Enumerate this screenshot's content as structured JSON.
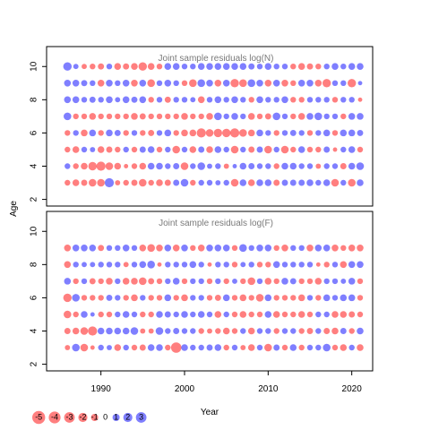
{
  "chart_data": {
    "type": "scatter",
    "encoding": "bubble",
    "xlabel": "Year",
    "ylabel": "Age",
    "xlim": [
      1983.5,
      2022.5
    ],
    "xticks": [
      1990,
      2000,
      2010,
      2020
    ],
    "colors": {
      "positive": "#0000ff",
      "negative": "#ff0000",
      "opacity": 0.5
    },
    "legend": {
      "placement": "bottom-left",
      "values": [
        -5,
        -4,
        -3,
        -2,
        -1,
        0,
        1,
        2,
        3
      ],
      "labels": [
        "-5",
        "-4",
        "-3",
        "-2",
        "-1",
        "0",
        "1",
        "2",
        "3"
      ]
    },
    "panels": [
      {
        "title": "Joint sample residuals log(N)",
        "ylim": [
          1.6,
          11.2
        ],
        "yticks": [
          2,
          4,
          6,
          8,
          10
        ],
        "yticklabels": [
          "2",
          "4",
          "6",
          "8",
          "10"
        ],
        "years": [
          1986,
          1987,
          1988,
          1989,
          1990,
          1991,
          1992,
          1993,
          1994,
          1995,
          1996,
          1997,
          1998,
          1999,
          2000,
          2001,
          2002,
          2003,
          2004,
          2005,
          2006,
          2007,
          2008,
          2009,
          2010,
          2011,
          2012,
          2013,
          2014,
          2015,
          2016,
          2017,
          2018,
          2019,
          2020,
          2021
        ],
        "ages": [
          3,
          4,
          5,
          6,
          7,
          8,
          9,
          10
        ],
        "residuals": [
          [
            -1.0,
            -1.5,
            -1.2,
            -2.0,
            -2.0,
            3.0,
            -0.8,
            -1.0,
            -1.2,
            -2.0,
            -1.0,
            -1.5,
            -1.2,
            1.2,
            2.0,
            -1.0,
            1.0,
            1.0,
            0.8,
            1.0,
            -2.0,
            1.5,
            -1.5,
            1.5,
            1.5,
            -1.2,
            1.2,
            1.2,
            1.2,
            1.5,
            1.0,
            1.5,
            -2.0,
            1.0,
            -2.0,
            1.5
          ],
          [
            1.0,
            -1.0,
            -1.5,
            -2.5,
            -3.0,
            -2.0,
            -1.5,
            -0.5,
            -1.0,
            -1.5,
            1.5,
            1.5,
            1.0,
            1.2,
            -2.0,
            1.0,
            2.0,
            0.8,
            1.0,
            -0.8,
            0.5,
            1.5,
            1.2,
            1.0,
            1.0,
            -1.0,
            1.5,
            1.5,
            1.0,
            1.0,
            -0.8,
            1.0,
            1.0,
            -1.2,
            1.5,
            2.0
          ],
          [
            -1.0,
            -1.5,
            1.0,
            0.8,
            -1.5,
            -1.2,
            -1.0,
            1.0,
            -1.0,
            1.2,
            1.5,
            -1.0,
            1.0,
            -2.0,
            1.0,
            -1.5,
            1.2,
            -1.5,
            1.5,
            1.0,
            -2.0,
            1.0,
            -1.2,
            1.2,
            -2.0,
            1.0,
            -2.0,
            -1.0,
            1.5,
            -1.0,
            -1.0,
            1.2,
            -0.5,
            1.0,
            1.5,
            -1.0
          ],
          [
            -1.0,
            1.0,
            -1.5,
            1.5,
            -1.0,
            1.5,
            1.2,
            -1.0,
            1.0,
            -1.0,
            -1.2,
            1.0,
            1.5,
            -1.0,
            -1.5,
            -1.5,
            -3.0,
            -2.0,
            -2.5,
            -2.5,
            -3.0,
            -2.0,
            -1.5,
            1.5,
            1.0,
            -1.0,
            1.0,
            1.2,
            1.0,
            -1.0,
            1.0,
            1.5,
            -1.0,
            1.5,
            1.5,
            1.2
          ],
          [
            2.0,
            -1.0,
            -1.0,
            -1.5,
            -1.0,
            -1.0,
            -1.0,
            -1.0,
            -1.5,
            -1.2,
            -1.0,
            -1.0,
            -1.0,
            -1.0,
            -1.5,
            -1.0,
            -1.0,
            -1.5,
            2.0,
            1.0,
            1.5,
            1.0,
            -1.5,
            -1.0,
            -1.2,
            2.0,
            1.0,
            -1.0,
            -1.5,
            1.5,
            2.0,
            1.0,
            1.0,
            -1.0,
            1.5,
            1.5
          ],
          [
            1.5,
            1.5,
            1.0,
            1.2,
            1.0,
            1.5,
            0.8,
            1.5,
            1.2,
            1.5,
            -1.0,
            1.0,
            -1.2,
            1.0,
            1.0,
            0.8,
            -1.5,
            1.0,
            1.5,
            1.0,
            1.5,
            1.0,
            -1.0,
            1.5,
            1.0,
            1.0,
            1.5,
            -1.0,
            -1.0,
            1.0,
            1.0,
            1.0,
            -1.0,
            1.0,
            1.0,
            -0.5
          ],
          [
            1.5,
            1.5,
            1.2,
            1.0,
            -1.5,
            1.5,
            1.0,
            1.5,
            -1.5,
            1.5,
            -2.0,
            1.0,
            1.5,
            1.0,
            -1.0,
            -2.0,
            2.0,
            1.5,
            -1.5,
            1.5,
            -2.5,
            -2.0,
            2.0,
            1.5,
            -1.5,
            1.5,
            -1.5,
            -1.0,
            1.5,
            1.5,
            -1.5,
            -2.5,
            1.0,
            1.0,
            -2.5,
            0.5
          ],
          [
            2.5,
            0.8,
            -0.8,
            -1.0,
            -1.2,
            1.0,
            -1.5,
            -1.2,
            -1.5,
            -2.5,
            -1.5,
            -1.0,
            1.5,
            1.5,
            1.0,
            1.0,
            1.5,
            1.5,
            1.5,
            1.5,
            1.5,
            1.5,
            1.2,
            1.0,
            1.5,
            1.0,
            1.0,
            -1.0,
            -1.5,
            -1.2,
            -1.0,
            1.0,
            1.5,
            1.0,
            1.5,
            1.5
          ]
        ]
      },
      {
        "title": "Joint sample residuals log(F)",
        "ylim": [
          1.6,
          11.2
        ],
        "yticks": [
          2,
          4,
          6,
          8,
          10
        ],
        "yticklabels": [
          "2",
          "4",
          "6",
          "8",
          "10"
        ],
        "years": [
          1986,
          1987,
          1988,
          1989,
          1990,
          1991,
          1992,
          1993,
          1994,
          1995,
          1996,
          1997,
          1998,
          1999,
          2000,
          2001,
          2002,
          2003,
          2004,
          2005,
          2006,
          2007,
          2008,
          2009,
          2010,
          2011,
          2012,
          2013,
          2014,
          2015,
          2016,
          2017,
          2018,
          2019,
          2020,
          2021
        ],
        "ages": [
          3,
          4,
          5,
          6,
          7,
          8,
          9
        ],
        "residuals": [
          [
            -0.8,
            2.0,
            -2.0,
            -0.5,
            1.0,
            0.8,
            -1.5,
            1.0,
            -1.0,
            -1.2,
            1.5,
            1.5,
            -1.0,
            -4.0,
            1.5,
            1.0,
            1.0,
            1.2,
            1.5,
            -1.0,
            1.0,
            -0.8,
            -1.5,
            1.0,
            -2.0,
            1.2,
            -1.0,
            1.5,
            -1.0,
            1.0,
            1.0,
            2.0,
            -1.0,
            -1.5,
            1.0,
            -1.5
          ],
          [
            -1.2,
            -1.5,
            -2.0,
            -3.0,
            1.5,
            1.5,
            1.5,
            1.5,
            2.0,
            -0.8,
            -0.8,
            2.0,
            1.0,
            1.2,
            1.0,
            1.0,
            -1.0,
            -0.8,
            -1.0,
            -1.5,
            -1.0,
            1.0,
            -1.5,
            1.0,
            1.0,
            -1.0,
            1.0,
            1.0,
            -1.0,
            -1.2,
            1.0,
            -1.2,
            -1.5,
            1.2,
            -1.0,
            1.5
          ],
          [
            -2.0,
            -1.0,
            1.5,
            0.5,
            -1.0,
            -1.0,
            1.0,
            1.5,
            1.0,
            -1.0,
            -1.0,
            1.5,
            1.2,
            1.0,
            1.5,
            1.0,
            1.5,
            1.0,
            -1.5,
            1.0,
            -1.0,
            -1.5,
            -1.0,
            -1.0,
            1.5,
            -1.5,
            -1.0,
            -1.0,
            -1.5,
            -1.0,
            1.0,
            1.0,
            -1.5,
            -1.5,
            -1.2,
            -1.0
          ],
          [
            -2.5,
            2.0,
            -1.0,
            -1.0,
            -1.0,
            1.2,
            1.0,
            -1.0,
            -1.5,
            1.0,
            -1.0,
            -1.0,
            1.5,
            -1.0,
            -1.5,
            1.0,
            1.0,
            -1.0,
            -1.2,
            1.5,
            -1.0,
            -1.5,
            -1.0,
            -2.0,
            1.5,
            -1.0,
            -1.0,
            -1.0,
            -1.5,
            1.0,
            -1.0,
            1.5,
            1.0,
            1.5,
            1.5,
            -1.0
          ],
          [
            1.5,
            -1.0,
            1.0,
            -1.2,
            -1.0,
            -1.5,
            1.0,
            -1.5,
            -1.5,
            -2.0,
            -1.2,
            -1.0,
            1.0,
            1.5,
            -1.0,
            1.0,
            1.0,
            -1.0,
            1.0,
            -1.0,
            0.8,
            -1.0,
            -2.0,
            1.0,
            -1.5,
            -1.0,
            1.5,
            1.2,
            -1.0,
            -1.0,
            -1.5,
            1.0,
            1.0,
            0.8,
            1.5,
            -1.0
          ],
          [
            -1.5,
            1.0,
            0.8,
            0.8,
            1.0,
            1.0,
            1.0,
            -0.8,
            1.0,
            1.5,
            2.0,
            -0.5,
            1.0,
            1.0,
            1.0,
            1.5,
            1.0,
            -0.5,
            1.0,
            1.0,
            -1.0,
            0.8,
            1.0,
            -1.0,
            -1.0,
            1.5,
            1.0,
            1.0,
            1.0,
            1.0,
            -0.5,
            -1.0,
            1.0,
            -1.5,
            1.5,
            1.5
          ],
          [
            -1.5,
            1.5,
            1.5,
            1.5,
            -1.2,
            1.0,
            1.0,
            1.5,
            1.0,
            -1.5,
            -2.0,
            -1.5,
            1.5,
            -1.5,
            1.5,
            -1.0,
            -1.5,
            1.5,
            1.5,
            1.5,
            -1.0,
            2.0,
            1.0,
            1.5,
            1.5,
            -1.0,
            -1.5,
            1.0,
            1.0,
            -1.5,
            1.5,
            1.5,
            -1.5,
            -1.0,
            -1.5,
            -1.5
          ]
        ]
      }
    ]
  }
}
